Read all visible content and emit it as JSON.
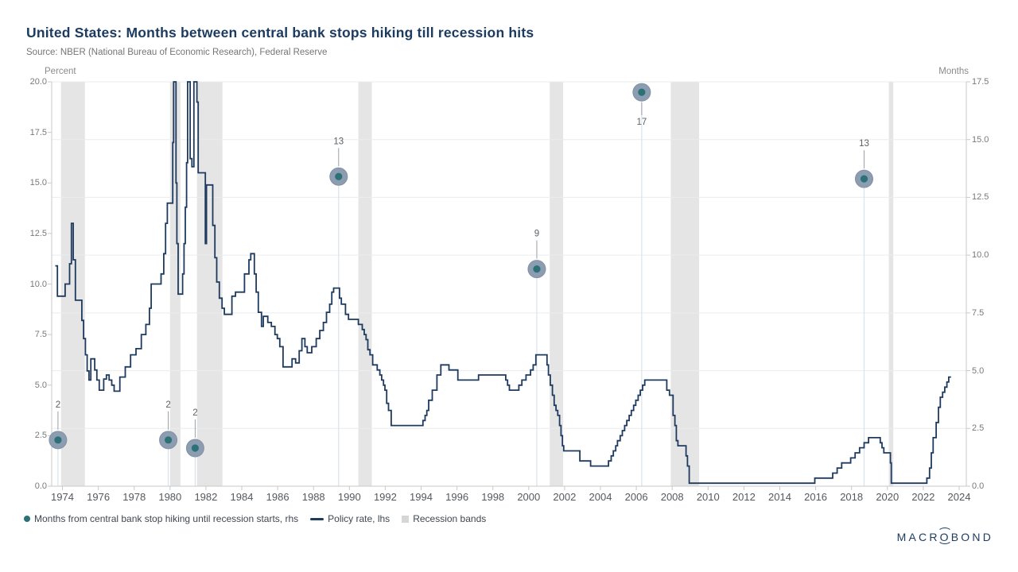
{
  "header": {
    "title": "United States: Months between central bank stops hiking till recession hits",
    "source": "Source: NBER (National Bureau of Economic Research), Federal Reserve"
  },
  "axes": {
    "left_unit": "Percent",
    "right_unit": "Months",
    "left_tick_labels": [
      "20.0",
      "17.5",
      "15.0",
      "12.5",
      "10.0",
      "7.5",
      "5.0",
      "2.5",
      "0.0"
    ],
    "right_tick_labels": [
      "17.5",
      "15.0",
      "12.5",
      "10.0",
      "7.5",
      "5.0",
      "2.5",
      "0.0"
    ],
    "x_tick_years": [
      1974,
      1976,
      1978,
      1980,
      1982,
      1984,
      1986,
      1988,
      1990,
      1992,
      1994,
      1996,
      1998,
      2000,
      2002,
      2004,
      2006,
      2008,
      2010,
      2012,
      2014,
      2016,
      2018,
      2020,
      2022,
      2024
    ]
  },
  "legend": {
    "items": [
      {
        "label": "Months from central bank stop hiking until recession starts, rhs",
        "marker": "dot"
      },
      {
        "label": "Policy rate, lhs",
        "marker": "line"
      },
      {
        "label": "Recession bands",
        "marker": "square"
      }
    ]
  },
  "branding": {
    "pre": "MACR",
    "o": "O",
    "post": "BOND"
  },
  "colors": {
    "title": "#1C3B60",
    "policy_line": "#1E3A5F",
    "scatter_outer": "#8C9DB2",
    "scatter_inner": "#2C7176",
    "recession_band": "#E5E5E5",
    "gridline": "#EAECEE",
    "axis_line": "#C9C9C9",
    "dropline": "#D9E3EA"
  },
  "chart_data": {
    "type": "line",
    "title": "United States: Months between central bank stops hiking till recession hits",
    "x_range": [
      1973.4,
      2024.4
    ],
    "grid": "horizontal-right-axis",
    "legend_position": "bottom-left",
    "left_axis": {
      "label": "Percent",
      "min": 0,
      "max": 20,
      "step": 2.5
    },
    "right_axis": {
      "label": "Months",
      "min": 0,
      "max": 17.5,
      "step": 2.5
    },
    "recession_bands": [
      [
        1973.92,
        1975.25
      ],
      [
        1980.0,
        1980.58
      ],
      [
        1981.5,
        1982.92
      ],
      [
        1990.5,
        1991.25
      ],
      [
        2001.17,
        2001.92
      ],
      [
        2007.92,
        2009.5
      ],
      [
        2020.08,
        2020.33
      ]
    ],
    "series": [
      {
        "name": "Policy rate, lhs",
        "type": "step-line",
        "axis": "left",
        "color": "#1E3A5F",
        "points": [
          [
            1973.6,
            10.9
          ],
          [
            1973.72,
            9.4
          ],
          [
            1974.15,
            10.0
          ],
          [
            1974.4,
            11.0
          ],
          [
            1974.5,
            13.0
          ],
          [
            1974.6,
            11.2
          ],
          [
            1974.72,
            9.2
          ],
          [
            1975.08,
            8.2
          ],
          [
            1975.18,
            7.3
          ],
          [
            1975.28,
            6.5
          ],
          [
            1975.38,
            5.7
          ],
          [
            1975.48,
            5.25
          ],
          [
            1975.58,
            6.3
          ],
          [
            1975.8,
            5.75
          ],
          [
            1975.92,
            5.25
          ],
          [
            1976.05,
            4.75
          ],
          [
            1976.3,
            5.3
          ],
          [
            1976.45,
            5.5
          ],
          [
            1976.6,
            5.25
          ],
          [
            1976.75,
            5.0
          ],
          [
            1976.88,
            4.7
          ],
          [
            1977.2,
            5.4
          ],
          [
            1977.5,
            5.9
          ],
          [
            1977.8,
            6.5
          ],
          [
            1978.1,
            6.8
          ],
          [
            1978.4,
            7.5
          ],
          [
            1978.65,
            8.0
          ],
          [
            1978.85,
            8.8
          ],
          [
            1978.95,
            10.0
          ],
          [
            1979.5,
            10.5
          ],
          [
            1979.65,
            11.5
          ],
          [
            1979.75,
            13.0
          ],
          [
            1979.85,
            14.0
          ],
          [
            1980.15,
            17.0
          ],
          [
            1980.2,
            20.0
          ],
          [
            1980.33,
            15.0
          ],
          [
            1980.38,
            12.0
          ],
          [
            1980.45,
            9.5
          ],
          [
            1980.7,
            10.5
          ],
          [
            1980.78,
            12.0
          ],
          [
            1980.85,
            13.8
          ],
          [
            1980.92,
            16.0
          ],
          [
            1980.98,
            20.0
          ],
          [
            1981.12,
            16.2
          ],
          [
            1981.22,
            15.8
          ],
          [
            1981.33,
            20.0
          ],
          [
            1981.5,
            19.0
          ],
          [
            1981.57,
            15.5
          ],
          [
            1981.97,
            12.0
          ],
          [
            1982.03,
            14.9
          ],
          [
            1982.38,
            12.9
          ],
          [
            1982.5,
            11.3
          ],
          [
            1982.6,
            10.1
          ],
          [
            1982.75,
            9.3
          ],
          [
            1982.9,
            8.8
          ],
          [
            1983.03,
            8.5
          ],
          [
            1983.45,
            9.4
          ],
          [
            1983.65,
            9.6
          ],
          [
            1984.15,
            10.5
          ],
          [
            1984.4,
            11.2
          ],
          [
            1984.5,
            11.5
          ],
          [
            1984.7,
            10.5
          ],
          [
            1984.8,
            9.6
          ],
          [
            1984.92,
            8.6
          ],
          [
            1985.1,
            7.9
          ],
          [
            1985.2,
            8.4
          ],
          [
            1985.45,
            8.1
          ],
          [
            1985.65,
            7.9
          ],
          [
            1985.85,
            7.5
          ],
          [
            1985.98,
            7.3
          ],
          [
            1986.12,
            6.9
          ],
          [
            1986.3,
            5.9
          ],
          [
            1986.8,
            6.3
          ],
          [
            1987.0,
            6.1
          ],
          [
            1987.2,
            6.7
          ],
          [
            1987.35,
            7.3
          ],
          [
            1987.52,
            6.9
          ],
          [
            1987.65,
            6.6
          ],
          [
            1987.9,
            6.9
          ],
          [
            1988.15,
            7.3
          ],
          [
            1988.35,
            7.7
          ],
          [
            1988.55,
            8.1
          ],
          [
            1988.72,
            8.6
          ],
          [
            1988.9,
            9.0
          ],
          [
            1989.02,
            9.6
          ],
          [
            1989.12,
            9.8
          ],
          [
            1989.45,
            9.3
          ],
          [
            1989.55,
            9.0
          ],
          [
            1989.78,
            8.5
          ],
          [
            1989.95,
            8.25
          ],
          [
            1990.5,
            8.0
          ],
          [
            1990.72,
            7.75
          ],
          [
            1990.83,
            7.5
          ],
          [
            1990.93,
            7.25
          ],
          [
            1991.03,
            6.75
          ],
          [
            1991.15,
            6.5
          ],
          [
            1991.3,
            6.0
          ],
          [
            1991.55,
            5.75
          ],
          [
            1991.7,
            5.5
          ],
          [
            1991.8,
            5.25
          ],
          [
            1991.9,
            5.0
          ],
          [
            1991.98,
            4.75
          ],
          [
            1992.08,
            4.1
          ],
          [
            1992.18,
            3.75
          ],
          [
            1992.33,
            3.0
          ],
          [
            1994.1,
            3.25
          ],
          [
            1994.22,
            3.5
          ],
          [
            1994.32,
            3.75
          ],
          [
            1994.42,
            4.25
          ],
          [
            1994.62,
            4.75
          ],
          [
            1994.88,
            5.5
          ],
          [
            1995.1,
            6.0
          ],
          [
            1995.55,
            5.75
          ],
          [
            1996.05,
            5.25
          ],
          [
            1997.2,
            5.5
          ],
          [
            1998.72,
            5.25
          ],
          [
            1998.82,
            5.0
          ],
          [
            1998.92,
            4.75
          ],
          [
            1999.45,
            5.0
          ],
          [
            1999.62,
            5.25
          ],
          [
            1999.85,
            5.5
          ],
          [
            2000.1,
            5.75
          ],
          [
            2000.25,
            6.0
          ],
          [
            2000.4,
            6.5
          ],
          [
            2001.02,
            6.0
          ],
          [
            2001.1,
            5.5
          ],
          [
            2001.2,
            5.0
          ],
          [
            2001.32,
            4.5
          ],
          [
            2001.42,
            4.0
          ],
          [
            2001.52,
            3.75
          ],
          [
            2001.62,
            3.5
          ],
          [
            2001.72,
            3.0
          ],
          [
            2001.8,
            2.5
          ],
          [
            2001.88,
            2.0
          ],
          [
            2001.95,
            1.75
          ],
          [
            2002.85,
            1.25
          ],
          [
            2003.45,
            1.0
          ],
          [
            2004.45,
            1.25
          ],
          [
            2004.6,
            1.5
          ],
          [
            2004.72,
            1.75
          ],
          [
            2004.85,
            2.0
          ],
          [
            2004.95,
            2.25
          ],
          [
            2005.1,
            2.5
          ],
          [
            2005.22,
            2.75
          ],
          [
            2005.35,
            3.0
          ],
          [
            2005.47,
            3.25
          ],
          [
            2005.6,
            3.5
          ],
          [
            2005.72,
            3.75
          ],
          [
            2005.85,
            4.0
          ],
          [
            2005.97,
            4.25
          ],
          [
            2006.1,
            4.5
          ],
          [
            2006.22,
            4.75
          ],
          [
            2006.35,
            5.0
          ],
          [
            2006.47,
            5.25
          ],
          [
            2007.7,
            4.75
          ],
          [
            2007.85,
            4.5
          ],
          [
            2008.05,
            3.5
          ],
          [
            2008.15,
            3.0
          ],
          [
            2008.23,
            2.25
          ],
          [
            2008.32,
            2.0
          ],
          [
            2008.77,
            1.5
          ],
          [
            2008.85,
            1.0
          ],
          [
            2008.95,
            0.15
          ],
          [
            2015.95,
            0.4
          ],
          [
            2016.95,
            0.65
          ],
          [
            2017.2,
            0.9
          ],
          [
            2017.45,
            1.15
          ],
          [
            2017.95,
            1.4
          ],
          [
            2018.2,
            1.65
          ],
          [
            2018.45,
            1.9
          ],
          [
            2018.7,
            2.15
          ],
          [
            2018.95,
            2.4
          ],
          [
            2019.6,
            2.15
          ],
          [
            2019.7,
            1.9
          ],
          [
            2019.8,
            1.65
          ],
          [
            2020.17,
            1.15
          ],
          [
            2020.22,
            0.15
          ],
          [
            2022.2,
            0.4
          ],
          [
            2022.35,
            0.9
          ],
          [
            2022.45,
            1.65
          ],
          [
            2022.55,
            2.4
          ],
          [
            2022.72,
            3.15
          ],
          [
            2022.85,
            3.9
          ],
          [
            2022.95,
            4.4
          ],
          [
            2023.08,
            4.65
          ],
          [
            2023.2,
            4.9
          ],
          [
            2023.32,
            5.15
          ],
          [
            2023.42,
            5.4
          ],
          [
            2023.55,
            5.4
          ]
        ]
      },
      {
        "name": "Months from central bank stop hiking until recession starts, rhs",
        "type": "scatter",
        "axis": "right",
        "color_outer": "#8C9DB2",
        "color_inner": "#2C7176",
        "points": [
          {
            "year": 1973.75,
            "months": 2.0,
            "label": "2",
            "label_side": "above"
          },
          {
            "year": 1979.9,
            "months": 2.0,
            "label": "2",
            "label_side": "above"
          },
          {
            "year": 1981.4,
            "months": 1.65,
            "label": "2",
            "label_side": "above"
          },
          {
            "year": 1989.4,
            "months": 13.4,
            "label": "13",
            "label_side": "above"
          },
          {
            "year": 2000.45,
            "months": 9.4,
            "label": "9",
            "label_side": "above"
          },
          {
            "year": 2006.3,
            "months": 17.05,
            "label": "17",
            "label_side": "below"
          },
          {
            "year": 2018.7,
            "months": 13.3,
            "label": "13",
            "label_side": "above"
          }
        ]
      }
    ]
  }
}
